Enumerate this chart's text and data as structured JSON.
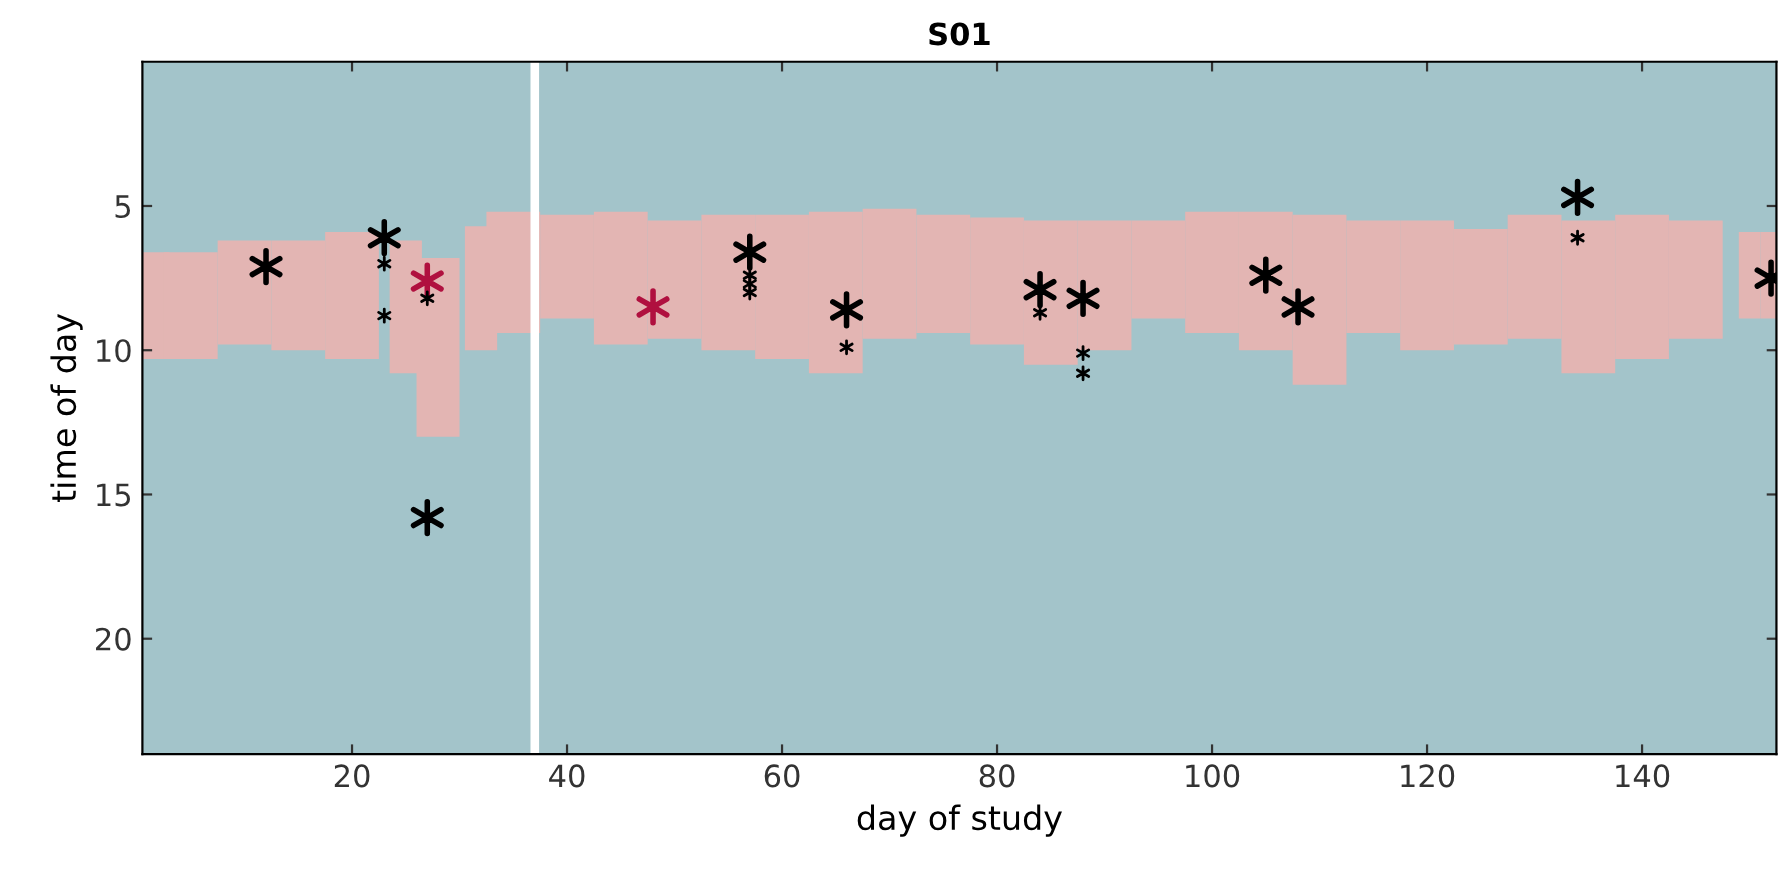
{
  "chart_data": {
    "type": "scatter",
    "title": "S01",
    "xlabel": "day of study",
    "ylabel": "time of day",
    "xlim": [
      0.5,
      152.5
    ],
    "ylim": [
      24,
      0
    ],
    "xticks": [
      20,
      40,
      60,
      80,
      100,
      120,
      140
    ],
    "yticks": [
      5,
      10,
      15,
      20
    ],
    "grid": false,
    "legend": false,
    "bands": [
      {
        "axis": "x",
        "from": 36.6,
        "to": 37.4,
        "color": "#ffffff"
      }
    ],
    "series": [
      {
        "type": "bar",
        "color": "#e3b5b3",
        "x": [
          1,
          5,
          10,
          15,
          20,
          25,
          28,
          32,
          35,
          40,
          45,
          50,
          55,
          60,
          65,
          70,
          75,
          80,
          85,
          90,
          95,
          100,
          105,
          110,
          115,
          120,
          125,
          130,
          135,
          140,
          145,
          150,
          152
        ],
        "values": [
          3.7,
          3.7,
          3.6,
          3.8,
          4.4,
          4.6,
          6.2,
          4.3,
          4.2,
          3.6,
          4.6,
          4.1,
          4.7,
          5.0,
          5.6,
          4.5,
          4.1,
          4.4,
          5.0,
          4.5,
          3.4,
          4.2,
          4.8,
          5.9,
          3.9,
          4.5,
          4.0,
          4.3,
          5.3,
          5.0,
          4.1,
          3.0,
          3.0
        ],
        "base": [
          6.6,
          6.6,
          6.2,
          6.2,
          5.9,
          6.2,
          6.8,
          5.7,
          5.2,
          5.3,
          5.2,
          5.5,
          5.3,
          5.3,
          5.2,
          5.1,
          5.3,
          5.4,
          5.5,
          5.5,
          5.5,
          5.2,
          5.2,
          5.3,
          5.5,
          5.5,
          5.8,
          5.3,
          5.5,
          5.3,
          5.5,
          5.9,
          5.9
        ]
      },
      {
        "color": "#000000",
        "marker": "cross",
        "x": [
          12,
          23,
          27,
          57,
          66,
          84,
          88,
          105,
          108,
          134,
          152
        ],
        "values": [
          7.1,
          6.1,
          15.8,
          6.6,
          8.6,
          7.9,
          8.2,
          7.4,
          8.5,
          4.7,
          7.5
        ],
        "sizes": [
          1,
          1,
          1,
          1,
          1,
          1,
          1,
          1,
          1,
          1,
          1
        ]
      },
      {
        "color": "#b0103f",
        "marker": "cross",
        "x": [
          27,
          48
        ],
        "values": [
          7.6,
          8.5
        ],
        "sizes": [
          1,
          1
        ]
      },
      {
        "color": "#000000",
        "marker": "cross",
        "x": [
          23,
          23,
          27,
          57,
          57,
          57,
          66,
          84,
          88,
          88,
          134
        ],
        "values": [
          7.0,
          8.8,
          8.2,
          7.4,
          7.7,
          8.0,
          9.9,
          8.7,
          10.1,
          10.8,
          6.1
        ],
        "sizes": [
          0.17,
          0.17,
          0.17,
          0.17,
          0.17,
          0.17,
          0.17,
          0.17,
          0.17,
          0.17,
          0.17
        ]
      }
    ]
  }
}
